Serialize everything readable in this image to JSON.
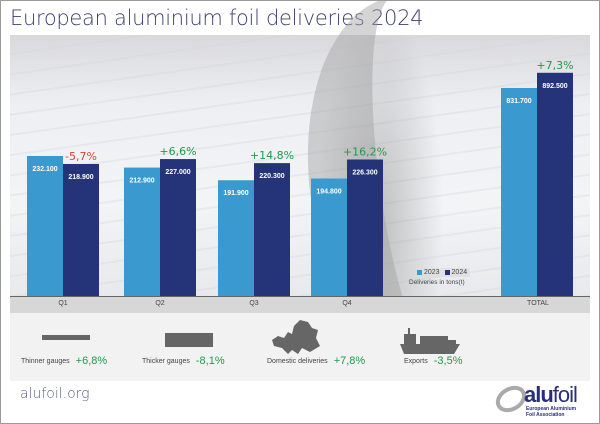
{
  "title": "European aluminium foil deliveries 2024",
  "chart_data": {
    "type": "bar",
    "title": "European aluminium foil deliveries 2024",
    "categories": [
      "Q1",
      "Q2",
      "Q3",
      "Q4",
      "TOTAL"
    ],
    "series": [
      {
        "name": "2023",
        "color": "#3a9ad0",
        "values": [
          232100,
          212900,
          191900,
          194800,
          831700
        ],
        "labels": [
          "232.100",
          "212.900",
          "191.900",
          "194.800",
          "831.700"
        ]
      },
      {
        "name": "2024",
        "color": "#253479",
        "values": [
          218900,
          227000,
          220300,
          226300,
          892500
        ],
        "labels": [
          "218.900",
          "227.000",
          "220.300",
          "226.300",
          "892.500"
        ]
      }
    ],
    "changes": [
      "-5,7%",
      "+6,6%",
      "+14,8%",
      "+16,2%",
      "+7,3%"
    ],
    "change_colors": [
      "#e0452b",
      "#1f9a4a",
      "#1f9a4a",
      "#1f9a4a",
      "#1f9a4a"
    ],
    "ylabel": "Deliveries in tons(t)",
    "legend": {
      "placement": "bottom-right",
      "entries": [
        "2023",
        "2024"
      ]
    }
  },
  "kpis": [
    {
      "label": "Thinner gauges",
      "value": "+6,8%",
      "icon": "thin-bar-icon"
    },
    {
      "label": "Thicker gauges",
      "value": "-8,1%",
      "icon": "thick-bar-icon"
    },
    {
      "label": "Domestic deliveries",
      "value": "+7,8%",
      "icon": "europe-map-icon"
    },
    {
      "label": "Exports",
      "value": "-3,5%",
      "icon": "cargo-ship-icon"
    }
  ],
  "footer": {
    "url": "alufoil.org",
    "logo_main": "alu",
    "logo_accent": "foil",
    "logo_sub1": "European Aluminium",
    "logo_sub2": "Foil Association"
  }
}
